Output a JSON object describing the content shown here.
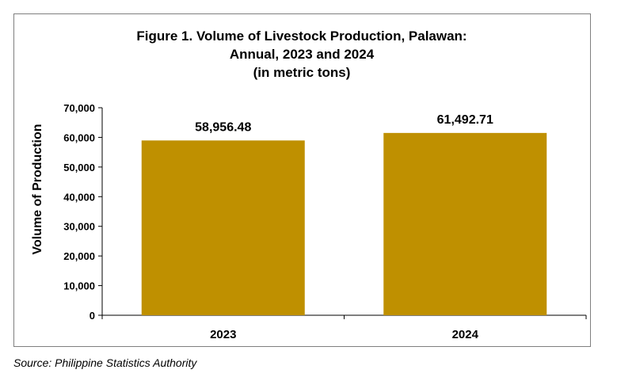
{
  "chart_data": {
    "type": "bar",
    "title_lines": [
      "Figure 1. Volume of Livestock Production, Palawan:",
      "Annual, 2023 and 2024",
      "(in metric tons)"
    ],
    "xlabel": "",
    "ylabel": "Volume of Production",
    "categories": [
      "2023",
      "2024"
    ],
    "values": [
      58956.48,
      61492.71
    ],
    "data_labels": [
      "58,956.48",
      "61,492.71"
    ],
    "ylim": [
      0,
      70000
    ],
    "y_ticks": [
      0,
      10000,
      20000,
      30000,
      40000,
      50000,
      60000,
      70000
    ],
    "y_tick_labels": [
      "0",
      "10,000",
      "20,000",
      "30,000",
      "40,000",
      "50,000",
      "60,000",
      "70,000"
    ],
    "grid": false,
    "legend": "none",
    "bar_color": "#BF9000"
  },
  "source_note": "Source: Philippine Statistics Authority"
}
